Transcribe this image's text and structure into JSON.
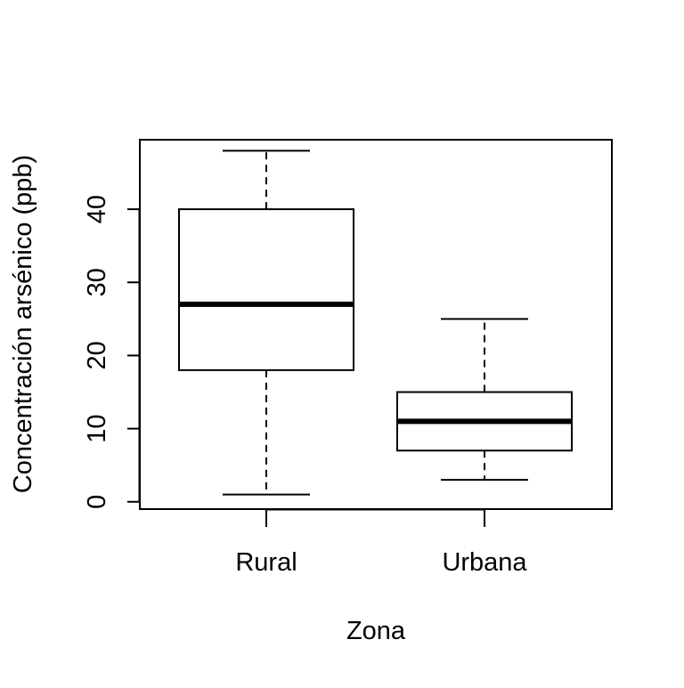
{
  "chart_data": {
    "type": "box",
    "title": "",
    "xlabel": "Zona",
    "ylabel": "Concentración arsénico (ppb)",
    "ylim": [
      -1,
      49.5
    ],
    "yticks": [
      0,
      10,
      20,
      30,
      40
    ],
    "categories": [
      "Rural",
      "Urbana"
    ],
    "boxes": [
      {
        "category": "Rural",
        "min": 1,
        "q1": 18,
        "median": 27,
        "q3": 40,
        "max": 48
      },
      {
        "category": "Urbana",
        "min": 3,
        "q1": 7,
        "median": 11,
        "q3": 15,
        "max": 25
      }
    ],
    "grid": false,
    "legend": "none",
    "colors": {
      "stroke": "#000000",
      "box_fill": "#ffffff",
      "background": "#ffffff"
    }
  }
}
